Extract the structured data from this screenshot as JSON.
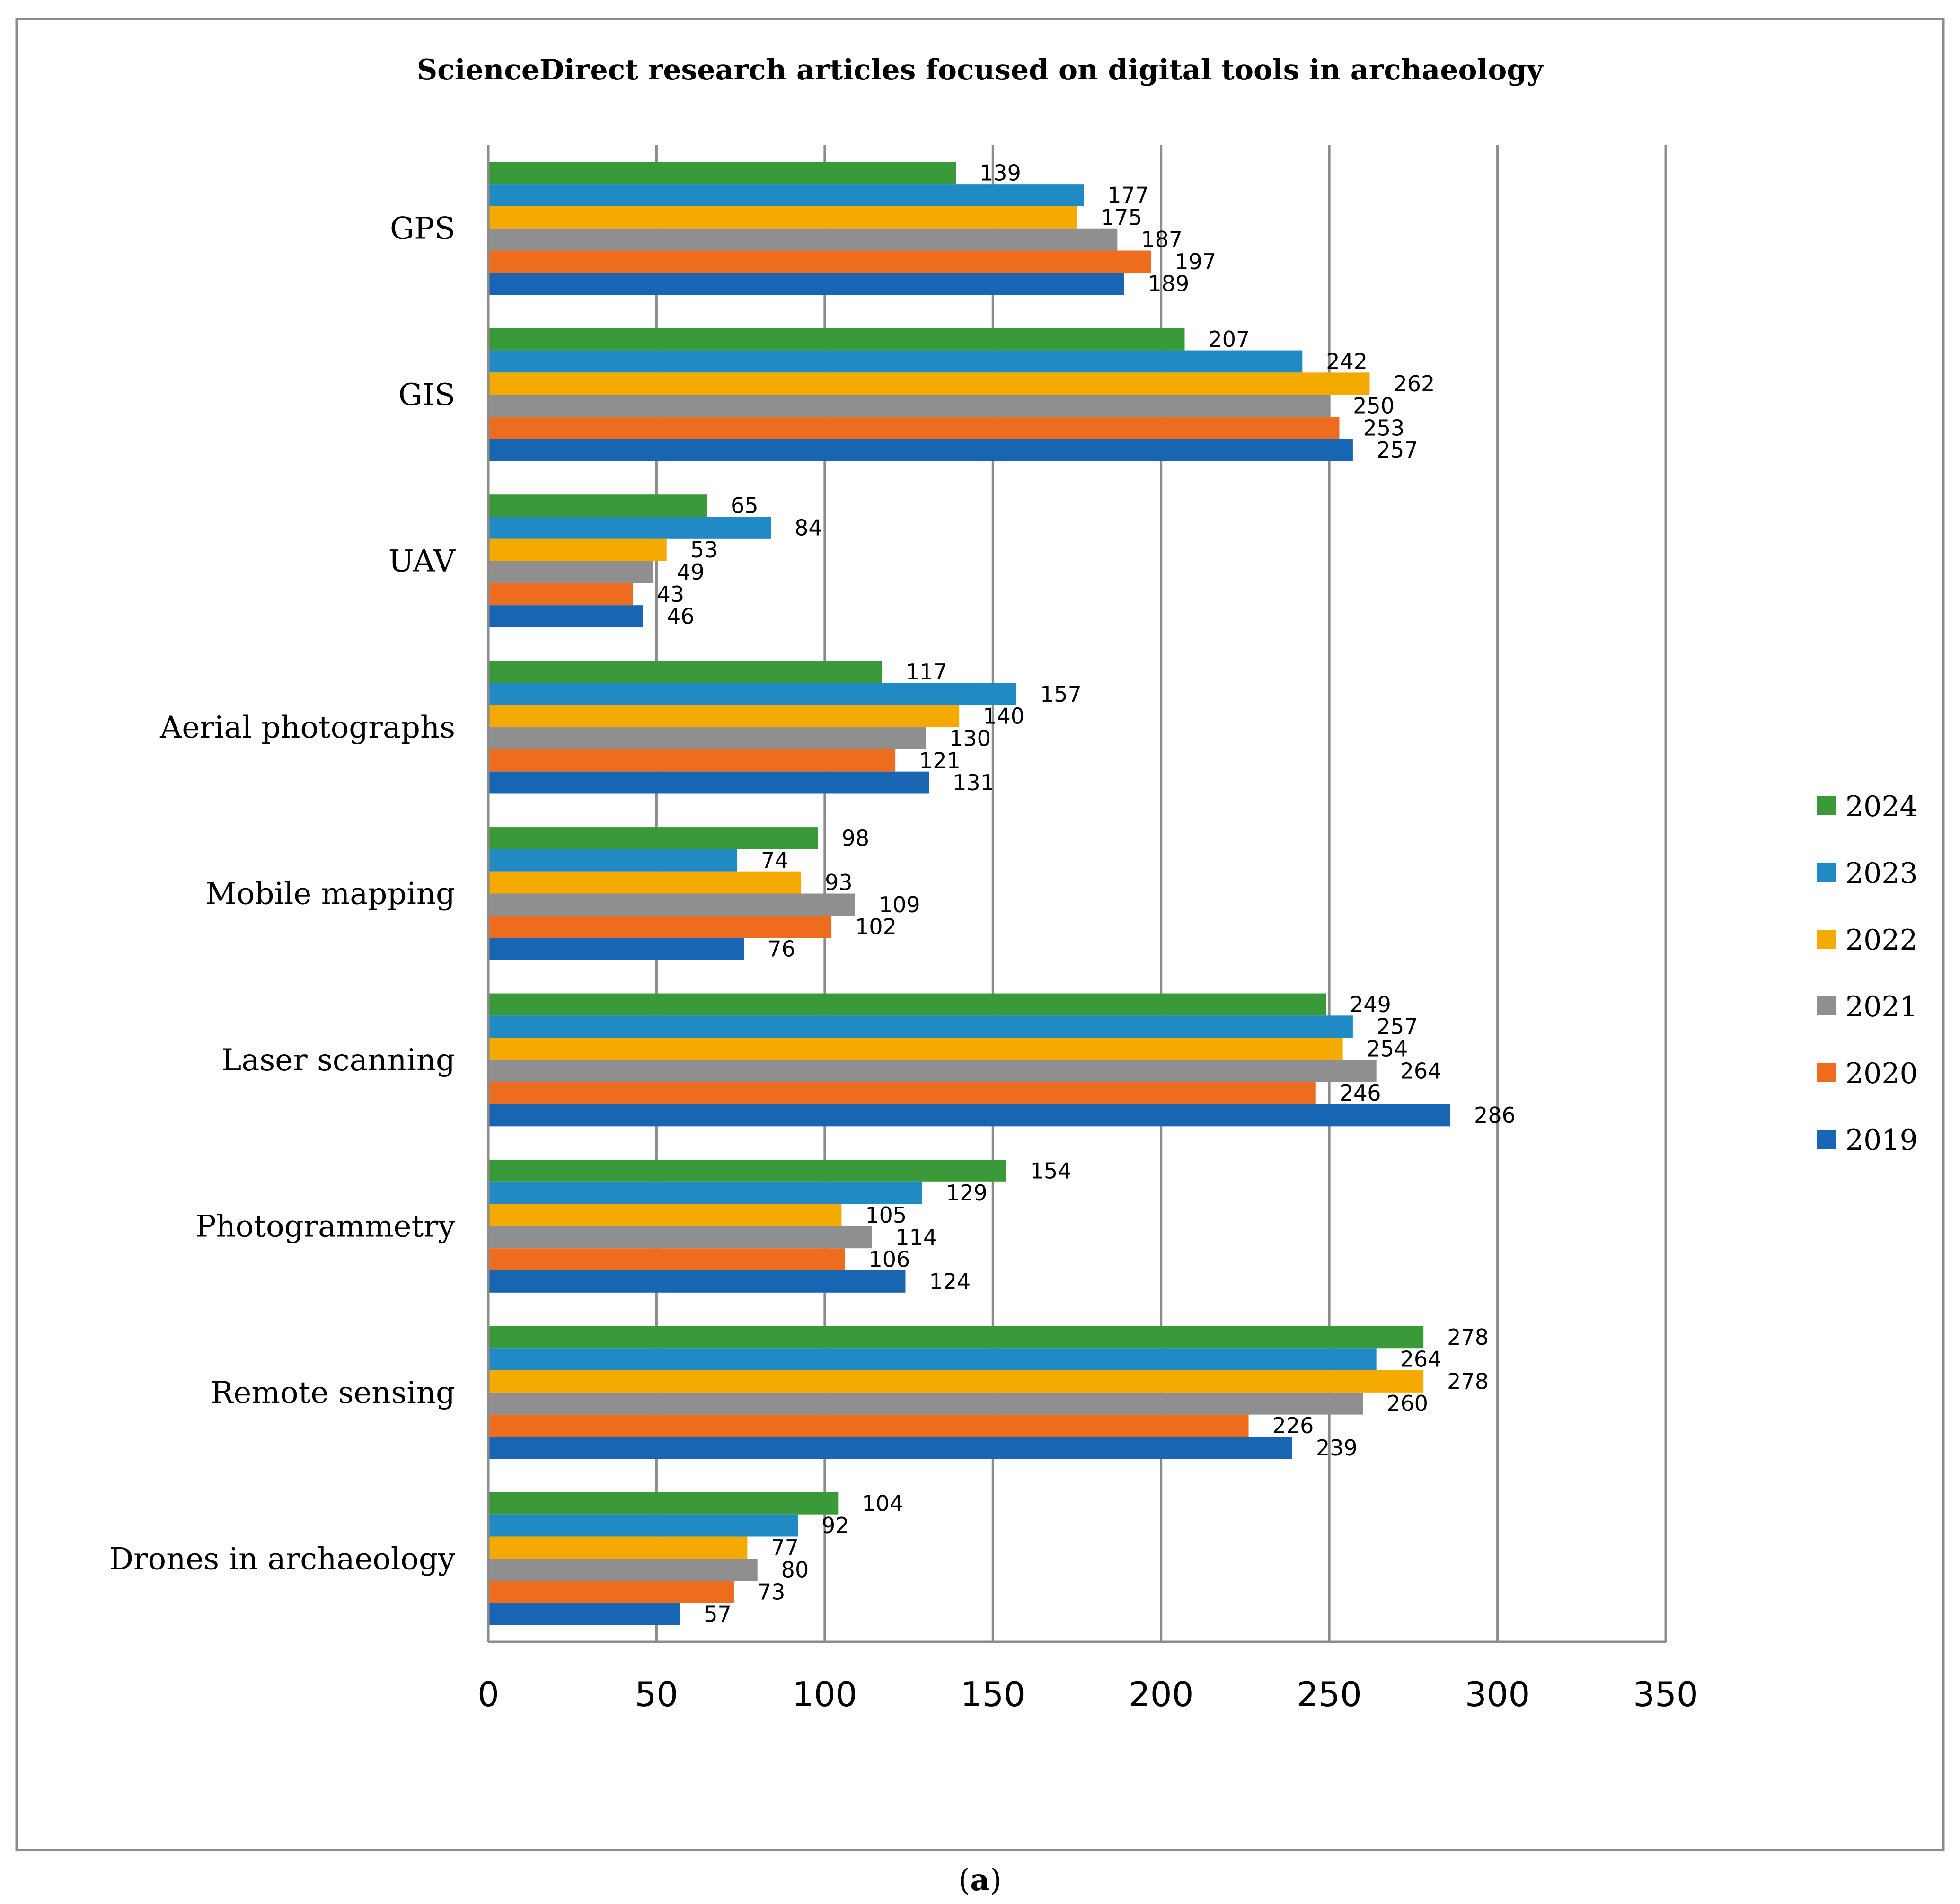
{
  "chart_data": {
    "type": "bar",
    "orientation": "horizontal",
    "title": "ScienceDirect research articles focused on digital tools in archaeology",
    "caption_prefix": "(",
    "caption_letter": "a",
    "caption_suffix": ")",
    "xlabel": "",
    "ylabel": "",
    "xlim": [
      0,
      350
    ],
    "xticks": [
      0,
      50,
      100,
      150,
      200,
      250,
      300,
      350
    ],
    "grid": true,
    "legend_position": "right",
    "categories": [
      "GPS",
      "GIS",
      "UAV",
      "Aerial photographs",
      "Mobile mapping",
      "Laser scanning",
      "Photogrammetry",
      "Remote sensing",
      "Drones in archaeology"
    ],
    "series": [
      {
        "name": "2024",
        "color": "#3a9a39",
        "values": [
          139,
          207,
          65,
          117,
          98,
          249,
          154,
          278,
          104
        ]
      },
      {
        "name": "2023",
        "color": "#1f8ac3",
        "values": [
          177,
          242,
          84,
          157,
          74,
          257,
          129,
          264,
          92
        ]
      },
      {
        "name": "2022",
        "color": "#f4aa00",
        "values": [
          175,
          262,
          53,
          140,
          93,
          254,
          105,
          278,
          77
        ]
      },
      {
        "name": "2021",
        "color": "#8f8f8f",
        "values": [
          187,
          250,
          49,
          130,
          109,
          264,
          114,
          260,
          80
        ]
      },
      {
        "name": "2020",
        "color": "#ee6c1e",
        "values": [
          197,
          253,
          43,
          121,
          102,
          246,
          106,
          226,
          73
        ]
      },
      {
        "name": "2019",
        "color": "#1865b4",
        "values": [
          189,
          257,
          46,
          131,
          76,
          286,
          124,
          239,
          57
        ]
      }
    ]
  }
}
